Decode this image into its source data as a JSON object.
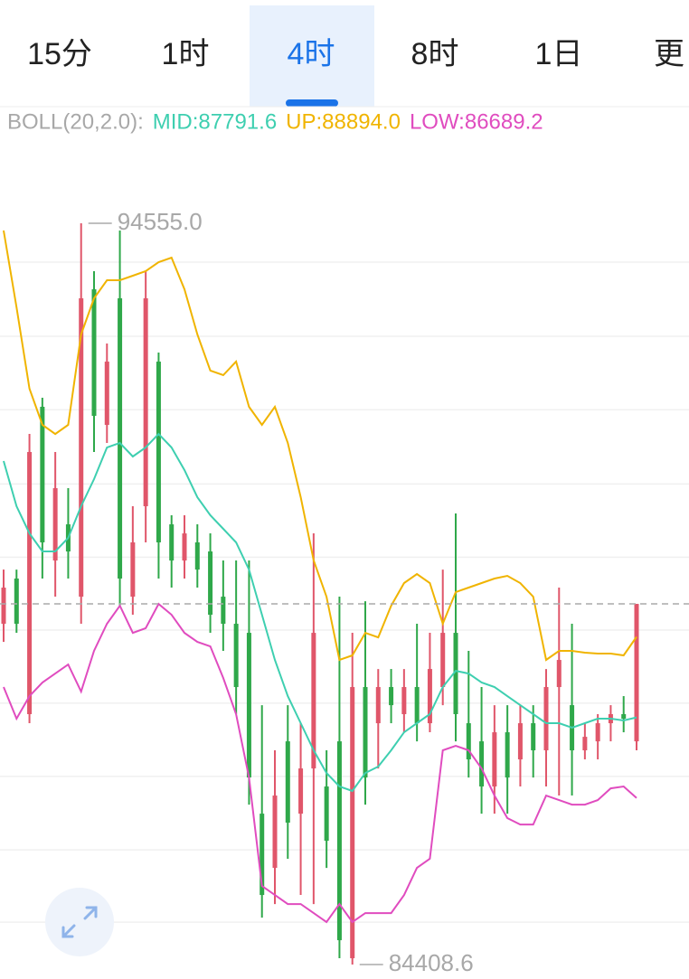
{
  "tabs": [
    "15分",
    "1时",
    "4时",
    "8时",
    "1日",
    "更"
  ],
  "active_tab": 2,
  "indicator": [
    {
      "text": "BOLL(20,2.0):",
      "color": "#a8a8a8"
    },
    {
      "text": "MID:87791.6",
      "color": "#3ecfb0"
    },
    {
      "text": "UP:88894.0",
      "color": "#f0b400"
    },
    {
      "text": "LOW:86689.2",
      "color": "#e04cbf"
    }
  ],
  "chart_data": {
    "type": "candlestick",
    "ylim": [
      84211,
      95631
    ],
    "grid_lines": [
      94023,
      93008,
      92002,
      90987,
      89985,
      88987,
      87986,
      86984,
      85979,
      84989
    ],
    "up_color": "#e0566a",
    "down_color": "#2fa84a",
    "last_price_line": true,
    "annotations": [
      {
        "value": 94555,
        "label": "94555.0"
      },
      {
        "value": 84408.6,
        "label": "84408.6"
      }
    ],
    "open": [
      89073,
      89692,
      87836,
      92043,
      89939,
      90434,
      89444,
      93651,
      91795,
      93528,
      89444,
      90682,
      92661,
      90434,
      89939,
      90187,
      90063,
      89444,
      89073,
      88949,
      86474,
      85732,
      87464,
      86474,
      87093,
      86846,
      87464,
      84495,
      88207,
      87712,
      88207,
      87836,
      88207,
      87712,
      88207,
      88949,
      87712,
      87464,
      86846,
      87588,
      87217,
      87712,
      87341,
      88207,
      87959,
      87341,
      87464,
      87712,
      87836,
      87464
    ],
    "high": [
      89815,
      89815,
      91671,
      92166,
      91424,
      90929,
      94555,
      93899,
      92909,
      94456,
      90682,
      93899,
      92785,
      90558,
      90558,
      90434,
      90310,
      89939,
      89939,
      89939,
      87959,
      87341,
      87959,
      87712,
      90310,
      87341,
      89444,
      88949,
      89382,
      88454,
      88454,
      88454,
      89073,
      88949,
      89815,
      90583,
      88702,
      88207,
      87959,
      87959,
      87959,
      87959,
      88454,
      89568,
      89073,
      87712,
      87836,
      87959,
      88083,
      89345
    ],
    "low": [
      88825,
      88949,
      87712,
      89692,
      89444,
      89692,
      89073,
      91424,
      91548,
      89320,
      89197,
      90187,
      89692,
      89568,
      89692,
      89568,
      88949,
      88702,
      87836,
      86598,
      85051,
      85237,
      85856,
      85361,
      85237,
      85732,
      84495,
      84408.6,
      86598,
      87093,
      87712,
      87588,
      87464,
      87588,
      87959,
      87464,
      86969,
      86474,
      86474,
      86474,
      86846,
      86969,
      86846,
      86722,
      86722,
      87217,
      87217,
      87464,
      87588,
      87341
    ],
    "close": [
      89568,
      89073,
      91424,
      90187,
      90929,
      90063,
      93528,
      91919,
      92661,
      89692,
      90187,
      93528,
      90187,
      89939,
      90310,
      89815,
      89197,
      89073,
      88207,
      86969,
      85361,
      86722,
      86351,
      87093,
      88949,
      86103,
      84742,
      88207,
      86969,
      88207,
      87959,
      88207,
      87712,
      88454,
      88949,
      87836,
      87217,
      86846,
      87588,
      86969,
      87712,
      87341,
      88207,
      88578,
      87341,
      87526,
      87712,
      87836,
      87774,
      89345
    ],
    "lines": [
      {
        "color": "#f0b400",
        "values": [
          94456,
          93404,
          92290,
          91795,
          91671,
          91795,
          93033,
          93528,
          93775,
          93775,
          93837,
          93899,
          94023,
          94084,
          93651,
          93033,
          92538,
          92476,
          92661,
          92043,
          91795,
          92043,
          91548,
          90805,
          89939,
          89444,
          88578,
          88640,
          88949,
          88887,
          89320,
          89630,
          89754,
          89630,
          89073,
          89506,
          89568,
          89630,
          89692,
          89729,
          89630,
          89444,
          88578,
          88702,
          88702,
          88677,
          88665,
          88665,
          88640,
          88894
        ]
      },
      {
        "color": "#3ecfb0",
        "values": [
          91300,
          90682,
          90310,
          90063,
          90063,
          90248,
          90682,
          91053,
          91486,
          91548,
          91362,
          91486,
          91671,
          91486,
          91177,
          90805,
          90558,
          90372,
          90187,
          89815,
          89197,
          88578,
          88083,
          87712,
          87341,
          87031,
          86846,
          86784,
          87031,
          87118,
          87341,
          87588,
          87712,
          87836,
          88207,
          88429,
          88392,
          88269,
          88207,
          88083,
          87959,
          87836,
          87712,
          87712,
          87650,
          87712,
          87774,
          87774,
          87749,
          87792
        ]
      },
      {
        "color": "#e04cbf",
        "values": [
          88207,
          87774,
          88083,
          88269,
          88392,
          88516,
          88145,
          88702,
          89073,
          89320,
          88949,
          89011,
          89345,
          89197,
          88949,
          88825,
          88764,
          88331,
          87836,
          86969,
          85484,
          85361,
          85237,
          85237,
          85113,
          84990,
          85237,
          84990,
          85113,
          85113,
          85113,
          85361,
          85732,
          85856,
          87341,
          87402,
          87341,
          87093,
          86722,
          86413,
          86326,
          86326,
          86722,
          86660,
          86598,
          86598,
          86660,
          86821,
          86846,
          86689
        ]
      }
    ]
  }
}
